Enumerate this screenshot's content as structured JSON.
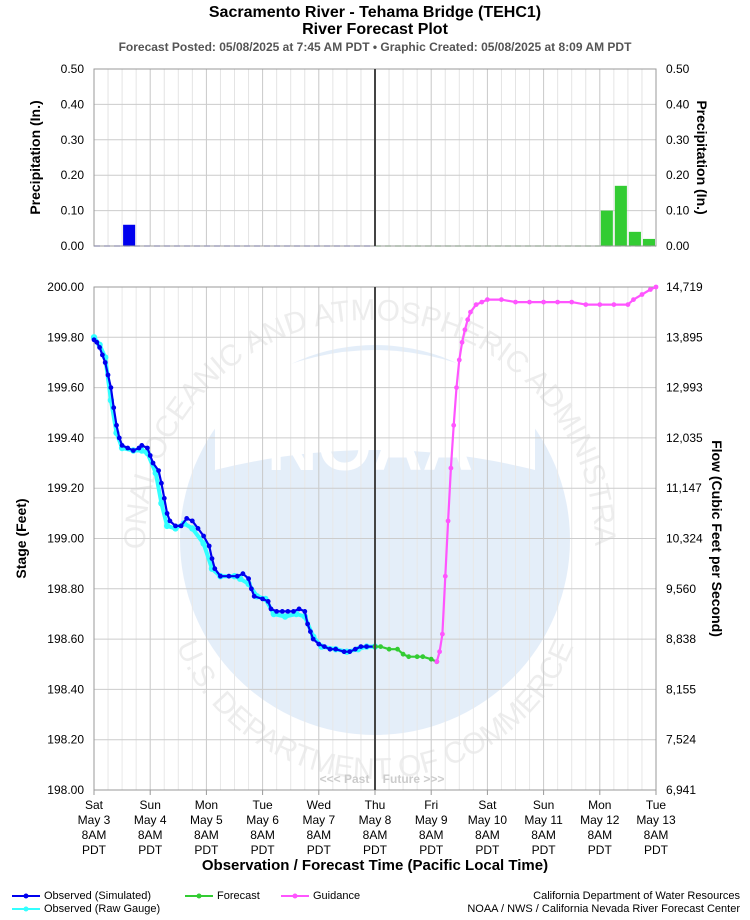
{
  "header": {
    "title_line1": "Sacramento River - Tehama Bridge (TEHC1)",
    "title_line2": "River Forecast Plot",
    "subtitle": "Forecast Posted: 05/08/2025 at 7:45 AM PDT  •  Graphic Created: 05/08/2025 at 8:09 AM PDT"
  },
  "watermark": {
    "logo_text": "NOAA",
    "ring_top": "NATIONAL OCEANIC AND ATMOSPHERIC ADMINISTRATION",
    "ring_bottom": "U.S. DEPARTMENT OF COMMERCE"
  },
  "past_future_label": "<<< Past    Future >>>",
  "colors": {
    "observed_simulated": "#0000ee",
    "observed_raw": "#33ffff",
    "forecast": "#33cc33",
    "guidance": "#ff55ff",
    "precip_observed": "#0000ee",
    "precip_forecast": "#33cc33",
    "now_line": "#444444",
    "grid": "#cccccc"
  },
  "footer": {
    "legend": [
      {
        "label": "Observed (Simulated)",
        "color": "#0000ee",
        "icon": "line-with-dots"
      },
      {
        "label": "Observed (Raw Gauge)",
        "color": "#33ffff",
        "icon": "line-with-dots"
      },
      {
        "label": "Forecast",
        "color": "#33cc33",
        "icon": "line-with-dots"
      },
      {
        "label": "Guidance",
        "color": "#ff55ff",
        "icon": "line-with-dots"
      }
    ],
    "credit_line1": "California Department of Water Resources",
    "credit_line2": "NOAA / NWS / California Nevada River Forecast Center"
  },
  "chart_data": [
    {
      "type": "bar",
      "ylabel_left": "Precipitation (In.)",
      "ylabel_right": "Precipitation (In.)",
      "ylim": [
        0,
        0.5
      ],
      "yticks": [
        "0.00",
        "0.10",
        "0.20",
        "0.30",
        "0.40",
        "0.50"
      ],
      "grid": true,
      "bars": [
        {
          "x": 0.5,
          "value": 0.06,
          "kind": "observed"
        },
        {
          "x": 9.0,
          "value": 0.1,
          "kind": "forecast"
        },
        {
          "x": 9.25,
          "value": 0.17,
          "kind": "forecast"
        },
        {
          "x": 9.5,
          "value": 0.04,
          "kind": "forecast"
        },
        {
          "x": 9.75,
          "value": 0.02,
          "kind": "forecast"
        }
      ]
    },
    {
      "type": "line",
      "xlabel": "Observation / Forecast Time (Pacific Local Time)",
      "ylabel": "Stage (Feet)",
      "ylabel_right": "Flow (Cubic Feet per Second)",
      "ylim": [
        198.0,
        200.0
      ],
      "grid": true,
      "now_x": 5.0,
      "yticks": [
        "198.00",
        "198.20",
        "198.40",
        "198.60",
        "198.80",
        "199.00",
        "199.20",
        "199.40",
        "199.60",
        "199.80",
        "200.00"
      ],
      "yticks_right": [
        "6,941",
        "7,524",
        "8,155",
        "8,838",
        "9,560",
        "10,324",
        "11,147",
        "12,035",
        "12,993",
        "13,895",
        "14,719"
      ],
      "xticks": [
        {
          "day": "Sat",
          "date": "May 3",
          "time": "8AM",
          "tz": "PDT"
        },
        {
          "day": "Sun",
          "date": "May 4",
          "time": "8AM",
          "tz": "PDT"
        },
        {
          "day": "Mon",
          "date": "May 5",
          "time": "8AM",
          "tz": "PDT"
        },
        {
          "day": "Tue",
          "date": "May 6",
          "time": "8AM",
          "tz": "PDT"
        },
        {
          "day": "Wed",
          "date": "May 7",
          "time": "8AM",
          "tz": "PDT"
        },
        {
          "day": "Thu",
          "date": "May 8",
          "time": "8AM",
          "tz": "PDT"
        },
        {
          "day": "Fri",
          "date": "May 9",
          "time": "8AM",
          "tz": "PDT"
        },
        {
          "day": "Sat",
          "date": "May 10",
          "time": "8AM",
          "tz": "PDT"
        },
        {
          "day": "Sun",
          "date": "May 11",
          "time": "8AM",
          "tz": "PDT"
        },
        {
          "day": "Mon",
          "date": "May 12",
          "time": "8AM",
          "tz": "PDT"
        },
        {
          "day": "Tue",
          "date": "May 13",
          "time": "8AM",
          "tz": "PDT"
        }
      ],
      "series": [
        {
          "name": "Observed (Raw Gauge)",
          "color": "#33ffff",
          "points": [
            [
              0,
              199.8
            ],
            [
              0.1,
              199.77
            ],
            [
              0.2,
              199.72
            ],
            [
              0.3,
              199.55
            ],
            [
              0.4,
              199.42
            ],
            [
              0.5,
              199.36
            ],
            [
              0.7,
              199.35
            ],
            [
              0.85,
              199.35
            ],
            [
              0.95,
              199.34
            ],
            [
              1.1,
              199.26
            ],
            [
              1.2,
              199.14
            ],
            [
              1.3,
              199.05
            ],
            [
              1.45,
              199.04
            ],
            [
              1.6,
              199.06
            ],
            [
              1.75,
              199.04
            ],
            [
              1.95,
              198.98
            ],
            [
              2.1,
              198.88
            ],
            [
              2.25,
              198.85
            ],
            [
              2.5,
              198.85
            ],
            [
              2.6,
              198.84
            ],
            [
              2.75,
              198.82
            ],
            [
              2.9,
              198.77
            ],
            [
              3.05,
              198.76
            ],
            [
              3.2,
              198.7
            ],
            [
              3.4,
              198.69
            ],
            [
              3.6,
              198.7
            ],
            [
              3.75,
              198.69
            ],
            [
              3.9,
              198.61
            ],
            [
              4.05,
              198.57
            ],
            [
              4.3,
              198.56
            ],
            [
              4.5,
              198.55
            ],
            [
              4.7,
              198.56
            ],
            [
              4.85,
              198.57
            ],
            [
              5.0,
              198.57
            ]
          ]
        },
        {
          "name": "Observed (Simulated)",
          "color": "#0000ee",
          "points": [
            [
              0,
              199.79
            ],
            [
              0.05,
              199.78
            ],
            [
              0.1,
              199.76
            ],
            [
              0.15,
              199.73
            ],
            [
              0.2,
              199.7
            ],
            [
              0.25,
              199.65
            ],
            [
              0.3,
              199.6
            ],
            [
              0.35,
              199.52
            ],
            [
              0.4,
              199.45
            ],
            [
              0.45,
              199.4
            ],
            [
              0.5,
              199.37
            ],
            [
              0.6,
              199.36
            ],
            [
              0.7,
              199.35
            ],
            [
              0.8,
              199.36
            ],
            [
              0.85,
              199.37
            ],
            [
              0.95,
              199.36
            ],
            [
              1.0,
              199.33
            ],
            [
              1.05,
              199.3
            ],
            [
              1.15,
              199.27
            ],
            [
              1.2,
              199.22
            ],
            [
              1.25,
              199.16
            ],
            [
              1.3,
              199.1
            ],
            [
              1.35,
              199.07
            ],
            [
              1.45,
              199.05
            ],
            [
              1.55,
              199.05
            ],
            [
              1.65,
              199.08
            ],
            [
              1.75,
              199.07
            ],
            [
              1.85,
              199.04
            ],
            [
              1.95,
              199.01
            ],
            [
              2.05,
              198.97
            ],
            [
              2.1,
              198.92
            ],
            [
              2.15,
              198.88
            ],
            [
              2.25,
              198.85
            ],
            [
              2.4,
              198.85
            ],
            [
              2.55,
              198.85
            ],
            [
              2.65,
              198.86
            ],
            [
              2.75,
              198.84
            ],
            [
              2.8,
              198.8
            ],
            [
              2.85,
              198.77
            ],
            [
              3.0,
              198.76
            ],
            [
              3.1,
              198.75
            ],
            [
              3.15,
              198.72
            ],
            [
              3.25,
              198.71
            ],
            [
              3.35,
              198.71
            ],
            [
              3.45,
              198.71
            ],
            [
              3.55,
              198.71
            ],
            [
              3.65,
              198.72
            ],
            [
              3.75,
              198.71
            ],
            [
              3.8,
              198.66
            ],
            [
              3.85,
              198.63
            ],
            [
              3.9,
              198.6
            ],
            [
              4.0,
              198.58
            ],
            [
              4.1,
              198.57
            ],
            [
              4.2,
              198.56
            ],
            [
              4.3,
              198.56
            ],
            [
              4.45,
              198.55
            ],
            [
              4.55,
              198.55
            ],
            [
              4.65,
              198.56
            ],
            [
              4.75,
              198.57
            ],
            [
              4.85,
              198.57
            ],
            [
              5.0,
              198.57
            ]
          ]
        },
        {
          "name": "Forecast",
          "color": "#33cc33",
          "points": [
            [
              5.0,
              198.57
            ],
            [
              5.1,
              198.57
            ],
            [
              5.25,
              198.56
            ],
            [
              5.4,
              198.56
            ],
            [
              5.5,
              198.54
            ],
            [
              5.6,
              198.53
            ],
            [
              5.75,
              198.53
            ],
            [
              5.85,
              198.53
            ],
            [
              6.0,
              198.52
            ],
            [
              6.1,
              198.51
            ]
          ]
        },
        {
          "name": "Guidance",
          "color": "#ff55ff",
          "points": [
            [
              6.1,
              198.51
            ],
            [
              6.15,
              198.55
            ],
            [
              6.2,
              198.62
            ],
            [
              6.25,
              198.85
            ],
            [
              6.3,
              199.07
            ],
            [
              6.35,
              199.28
            ],
            [
              6.4,
              199.45
            ],
            [
              6.45,
              199.6
            ],
            [
              6.5,
              199.71
            ],
            [
              6.55,
              199.78
            ],
            [
              6.6,
              199.83
            ],
            [
              6.65,
              199.87
            ],
            [
              6.7,
              199.9
            ],
            [
              6.8,
              199.93
            ],
            [
              6.9,
              199.94
            ],
            [
              7.0,
              199.95
            ],
            [
              7.25,
              199.95
            ],
            [
              7.5,
              199.94
            ],
            [
              7.75,
              199.94
            ],
            [
              8.0,
              199.94
            ],
            [
              8.25,
              199.94
            ],
            [
              8.5,
              199.94
            ],
            [
              8.75,
              199.93
            ],
            [
              9.0,
              199.93
            ],
            [
              9.25,
              199.93
            ],
            [
              9.5,
              199.93
            ],
            [
              9.6,
              199.95
            ],
            [
              9.75,
              199.97
            ],
            [
              9.9,
              199.99
            ],
            [
              10.0,
              200.0
            ]
          ]
        }
      ]
    }
  ]
}
